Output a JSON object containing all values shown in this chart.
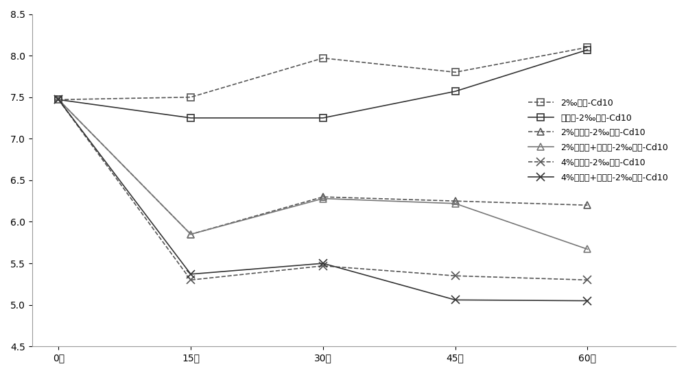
{
  "x_labels": [
    "0天",
    "15天",
    "30天",
    "45天",
    "60天"
  ],
  "x_values": [
    0,
    15,
    30,
    45,
    60
  ],
  "series": [
    {
      "label": "2‰石油-Cd10",
      "values": [
        7.47,
        7.5,
        7.97,
        7.8,
        8.1
      ],
      "linestyle": "dashed",
      "marker": "s",
      "color": "#555555",
      "linewidth": 1.2,
      "markersize": 7
    },
    {
      "label": "降解菌-2‰石油-Cd10",
      "values": [
        7.47,
        7.25,
        7.25,
        7.57,
        8.07
      ],
      "linestyle": "solid",
      "marker": "s",
      "color": "#333333",
      "linewidth": 1.2,
      "markersize": 7
    },
    {
      "label": "2%改良剂-2‰石油-Cd10",
      "values": [
        7.47,
        5.85,
        6.3,
        6.25,
        6.2
      ],
      "linestyle": "dashed",
      "marker": "^",
      "color": "#555555",
      "linewidth": 1.2,
      "markersize": 7
    },
    {
      "label": "2%改良剂+降解菌-2‰石油-Cd10",
      "values": [
        7.47,
        5.85,
        6.28,
        6.22,
        5.67
      ],
      "linestyle": "solid",
      "marker": "^",
      "color": "#777777",
      "linewidth": 1.2,
      "markersize": 7
    },
    {
      "label": "4%改良剂-2‰石油-Cd10",
      "values": [
        7.47,
        5.3,
        5.47,
        5.35,
        5.3
      ],
      "linestyle": "dashed",
      "marker": "x",
      "color": "#555555",
      "linewidth": 1.2,
      "markersize": 8
    },
    {
      "label": "4%改良剂+降解菌-2‰石油-Cd10",
      "values": [
        7.47,
        5.37,
        5.5,
        5.06,
        5.05
      ],
      "linestyle": "solid",
      "marker": "x",
      "color": "#333333",
      "linewidth": 1.2,
      "markersize": 8
    }
  ],
  "ylim": [
    4.5,
    8.5
  ],
  "yticks": [
    4.5,
    5.0,
    5.5,
    6.0,
    6.5,
    7.0,
    7.5,
    8.0,
    8.5
  ],
  "legend_fontsize": 9,
  "axis_fontsize": 10,
  "background_color": "#ffffff"
}
